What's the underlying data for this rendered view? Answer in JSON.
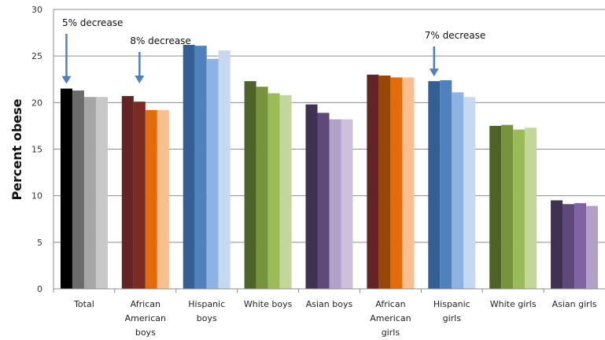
{
  "chart_data": {
    "type": "bar",
    "ylabel": "Percent obese",
    "ylim": [
      0,
      30
    ],
    "yticks": [
      "0",
      "5",
      "10",
      "15",
      "20",
      "25",
      "30"
    ],
    "grid": true,
    "categories": [
      [
        "Total"
      ],
      [
        "African",
        "American",
        "boys"
      ],
      [
        "Hispanic",
        "boys"
      ],
      [
        "White boys"
      ],
      [
        "Asian boys"
      ],
      [
        "African",
        "American",
        "girls"
      ],
      [
        "Hispanic",
        "girls"
      ],
      [
        "White girls"
      ],
      [
        "Asian girls"
      ]
    ],
    "values": [
      [
        21.5,
        21.3,
        20.6,
        20.6
      ],
      [
        20.7,
        20.1,
        19.2,
        19.2
      ],
      [
        26.2,
        26.1,
        24.7,
        25.6
      ],
      [
        22.3,
        21.7,
        21.0,
        20.8
      ],
      [
        19.8,
        18.9,
        18.2,
        18.2
      ],
      [
        23.0,
        22.9,
        22.7,
        22.7
      ],
      [
        22.3,
        22.4,
        21.1,
        20.6
      ],
      [
        17.5,
        17.6,
        17.1,
        17.3
      ],
      [
        9.5,
        9.1,
        9.2,
        8.9
      ]
    ],
    "colors": [
      [
        "#000000",
        "#6b6b6b",
        "#a6a6a6",
        "#c8c8c8"
      ],
      [
        "#632423",
        "#7b2b20",
        "#e26b0a",
        "#fabf8f"
      ],
      [
        "#335f93",
        "#4f81bd",
        "#8db3e2",
        "#c6d9f1"
      ],
      [
        "#4f6228",
        "#77933c",
        "#9bbb59",
        "#c4d79b"
      ],
      [
        "#3f3151",
        "#5f497a",
        "#b2a1c7",
        "#ccc0da"
      ],
      [
        "#632423",
        "#974806",
        "#e36c09",
        "#fabf8f"
      ],
      [
        "#335f93",
        "#4f81bd",
        "#8db3e2",
        "#c6d9f1"
      ],
      [
        "#4f6228",
        "#77933c",
        "#9bbb59",
        "#c4d79b"
      ],
      [
        "#3f3151",
        "#5f497a",
        "#8064a2",
        "#b2a1c7"
      ]
    ],
    "annotations": [
      {
        "text": "5% decrease",
        "category": 0
      },
      {
        "text": "8% decrease",
        "category": 1
      },
      {
        "text": "7% decrease",
        "category": 6
      }
    ],
    "annotation_color": "#4f81bd"
  }
}
